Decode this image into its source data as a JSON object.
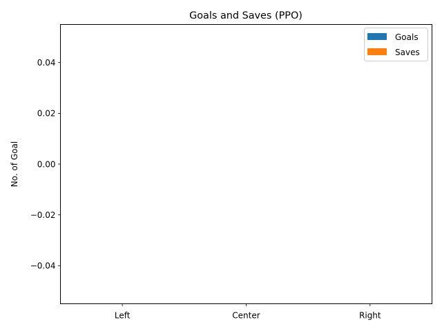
{
  "chart_data": {
    "type": "bar",
    "title": "Goals and Saves (PPO)",
    "xlabel": "",
    "ylabel": "No. of Goal",
    "categories": [
      "Left",
      "Center",
      "Right"
    ],
    "series": [
      {
        "name": "Goals",
        "values": [
          0,
          0,
          0
        ],
        "color": "#1f77b4"
      },
      {
        "name": "Saves",
        "values": [
          0,
          0,
          0
        ],
        "color": "#ff7f0e"
      }
    ],
    "ylim": [
      -0.055,
      0.055
    ],
    "yticks": [
      -0.04,
      -0.02,
      0.0,
      0.02,
      0.04
    ],
    "ytick_labels": [
      "−0.04",
      "−0.02",
      "0.00",
      "0.02",
      "0.04"
    ],
    "grid": false,
    "legend_position": "top-right"
  }
}
